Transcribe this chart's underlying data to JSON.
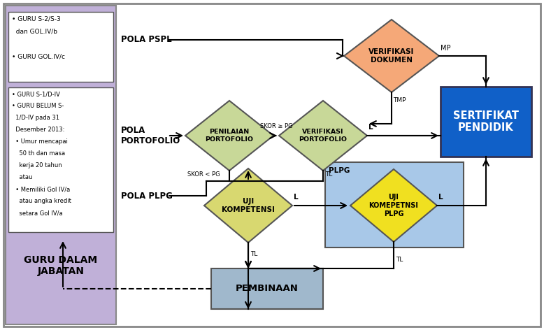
{
  "bg_color": "#ffffff",
  "border_color": "#888888",
  "left_panel_color": "#c0b0d8",
  "white_box_color": "#ffffff",
  "box1_lines": [
    "• GURU S-2/S-3",
    "  dan GOL.IV/b",
    "",
    "• GURU GOL.IV/c"
  ],
  "box2_lines": [
    "• GURU S-1/D-IV",
    "• GURU BELUM S-",
    "  1/D-IV pada 31",
    "  Desember 2013:",
    "  • Umur mencapai",
    "    50 th dan masa",
    "    kerja 20 tahun",
    "    atau",
    "  • Memiliki Gol IV/a",
    "    atau angka kredit",
    "    setara Gol IV/a"
  ],
  "guru_label": "GURU DALAM\nJABATAN",
  "pola_pspl": "POLA PSPL",
  "pola_portofolio": "POLA\nPORTOFOLIO",
  "pola_plpg": "POLA PLPG",
  "verif_dokumen_color": "#f5a878",
  "verif_dokumen_label": "VERIFIKASI\nDOKUMEN",
  "penilaian_color": "#c8d898",
  "penilaian_label": "PENILAIAN\nPORTOFOLIO",
  "verif_porto_color": "#c8d898",
  "verif_porto_label": "VERIFIKASI\nPORTOFOLIO",
  "uji_komp_color": "#d8d870",
  "uji_komp_label": "UJI\nKOMPETENSI",
  "uji_plpg_color": "#f0e020",
  "uji_plpg_label": "UJI\nKOMEPETNSI\nPLPG",
  "sertifikat_color": "#1060c8",
  "sertifikat_label": "SERTIFIKAT\nPENDIDIK",
  "pembinaan_color": "#a0b8cc",
  "pembinaan_label": "PEMBINAAN",
  "plpg_box_color": "#a8c8e8",
  "plpg_label": "PLPG",
  "edge_color": "#555555",
  "arrow_color": "black",
  "lw": 1.5
}
